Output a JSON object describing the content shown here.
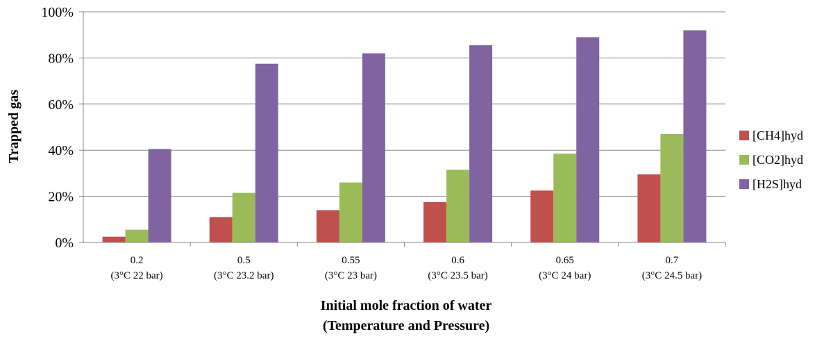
{
  "chart_data": {
    "type": "bar",
    "categories": [
      [
        "0.2",
        "(3°C 22 bar)"
      ],
      [
        "0.5",
        "(3°C 23.2 bar)"
      ],
      [
        "0.55",
        "(3°C 23 bar)"
      ],
      [
        "0.6",
        "(3°C 23.5 bar)"
      ],
      [
        "0.65",
        "(3°C 24 bar)"
      ],
      [
        "0.7",
        "(3°C 24.5 bar)"
      ]
    ],
    "series": [
      {
        "name": "[CH4]hyd",
        "color": "#c0504d",
        "values": [
          2.5,
          11,
          14,
          17.5,
          22.5,
          29.5
        ]
      },
      {
        "name": "[CO2]hyd",
        "color": "#9bbb59",
        "values": [
          5.5,
          21.5,
          26,
          31.5,
          38.5,
          47
        ]
      },
      {
        "name": "[H2S]hyd",
        "color": "#8064a2",
        "values": [
          40.5,
          77.5,
          82,
          85.5,
          89,
          92
        ]
      }
    ],
    "xlabel": [
      "Initial mole fraction of water",
      "(Temperature and Pressure)"
    ],
    "ylabel": "Trapped gas",
    "ylim": [
      0,
      100
    ],
    "yticks": [
      "0%",
      "20%",
      "40%",
      "60%",
      "80%",
      "100%"
    ],
    "grid": true,
    "legend": "right"
  }
}
